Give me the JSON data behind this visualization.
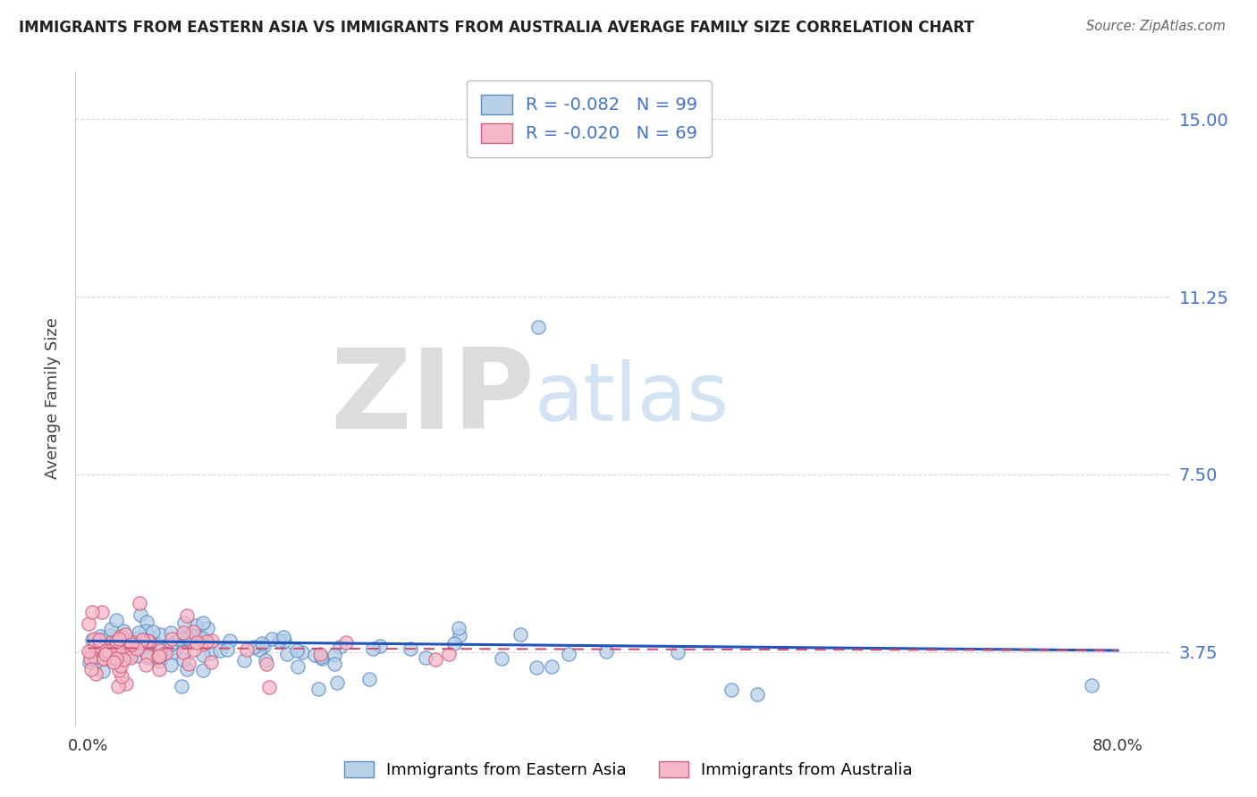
{
  "title": "IMMIGRANTS FROM EASTERN ASIA VS IMMIGRANTS FROM AUSTRALIA AVERAGE FAMILY SIZE CORRELATION CHART",
  "source": "Source: ZipAtlas.com",
  "ylabel": "Average Family Size",
  "ytick_labels": [
    "3.75",
    "7.50",
    "11.25",
    "15.00"
  ],
  "ytick_values": [
    3.75,
    7.5,
    11.25,
    15.0
  ],
  "ylim_min": 2.2,
  "ylim_max": 16.0,
  "xlim_min": -0.01,
  "xlim_max": 0.84,
  "R_blue": -0.082,
  "N_blue": 99,
  "R_pink": -0.02,
  "N_pink": 69,
  "scatter_facecolor_blue": "#b8d0e8",
  "scatter_edgecolor_blue": "#5b8cc8",
  "scatter_facecolor_pink": "#f5b8c8",
  "scatter_edgecolor_pink": "#d06080",
  "line_color_blue": "#2255bb",
  "line_color_pink": "#d05070",
  "legend_label_blue": "Immigrants from Eastern Asia",
  "legend_label_pink": "Immigrants from Australia",
  "watermark_ZIP": "ZIP",
  "watermark_atlas": "atlas",
  "background_color": "#ffffff",
  "title_color": "#222222",
  "axis_tick_color": "#4472c4",
  "grid_color": "#cccccc",
  "grid_style": "--",
  "legend_R_N_color": "#4472c4",
  "legend_R_label": "R",
  "legend_N_label": "N"
}
